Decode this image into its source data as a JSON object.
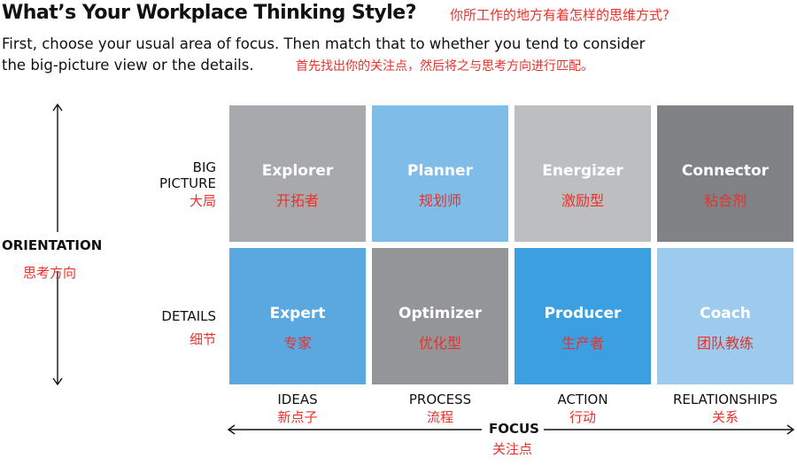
{
  "header": {
    "title": "What’s Your Workplace Thinking Style?",
    "title_cn": "你所工作的地方有着怎样的思维方式?",
    "subtitle_line1": "First, choose your usual area of focus. Then match that to whether you tend to consider",
    "subtitle_line2": "the big-picture view or the details.",
    "subtitle_cn": "首先找出你的关注点，然后将之与思考方向进行匹配。"
  },
  "axes": {
    "vertical_label": "ORIENTATION",
    "vertical_label_cn": "思考方向",
    "horizontal_label": "FOCUS",
    "horizontal_label_cn": "关注点"
  },
  "rows": [
    {
      "label_line1": "BIG",
      "label_line2": "PICTURE",
      "label_cn": "大局"
    },
    {
      "label_line1": "",
      "label_line2": "DETAILS",
      "label_cn": "细节"
    }
  ],
  "columns": [
    {
      "label": "IDEAS",
      "label_cn": "新点子"
    },
    {
      "label": "PROCESS",
      "label_cn": "流程"
    },
    {
      "label": "ACTION",
      "label_cn": "行动"
    },
    {
      "label": "RELATIONSHIPS",
      "label_cn": "关系"
    }
  ],
  "tiles": [
    [
      {
        "name": "Explorer",
        "name_cn": "开拓者",
        "color": "#a7a9ac"
      },
      {
        "name": "Planner",
        "name_cn": "规划师",
        "color": "#7fbce8"
      },
      {
        "name": "Energizer",
        "name_cn": "激励型",
        "color": "#bcbec0"
      },
      {
        "name": "Connector",
        "name_cn": "粘合剂",
        "color": "#808285"
      }
    ],
    [
      {
        "name": "Expert",
        "name_cn": "专家",
        "color": "#5aa8e0"
      },
      {
        "name": "Optimizer",
        "name_cn": "优化型",
        "color": "#939598"
      },
      {
        "name": "Producer",
        "name_cn": "生产者",
        "color": "#3b9fe0"
      },
      {
        "name": "Coach",
        "name_cn": "团队教练",
        "color": "#9ccbee"
      }
    ]
  ],
  "colors": {
    "accent_red": "#e8322b",
    "text": "#111111"
  }
}
